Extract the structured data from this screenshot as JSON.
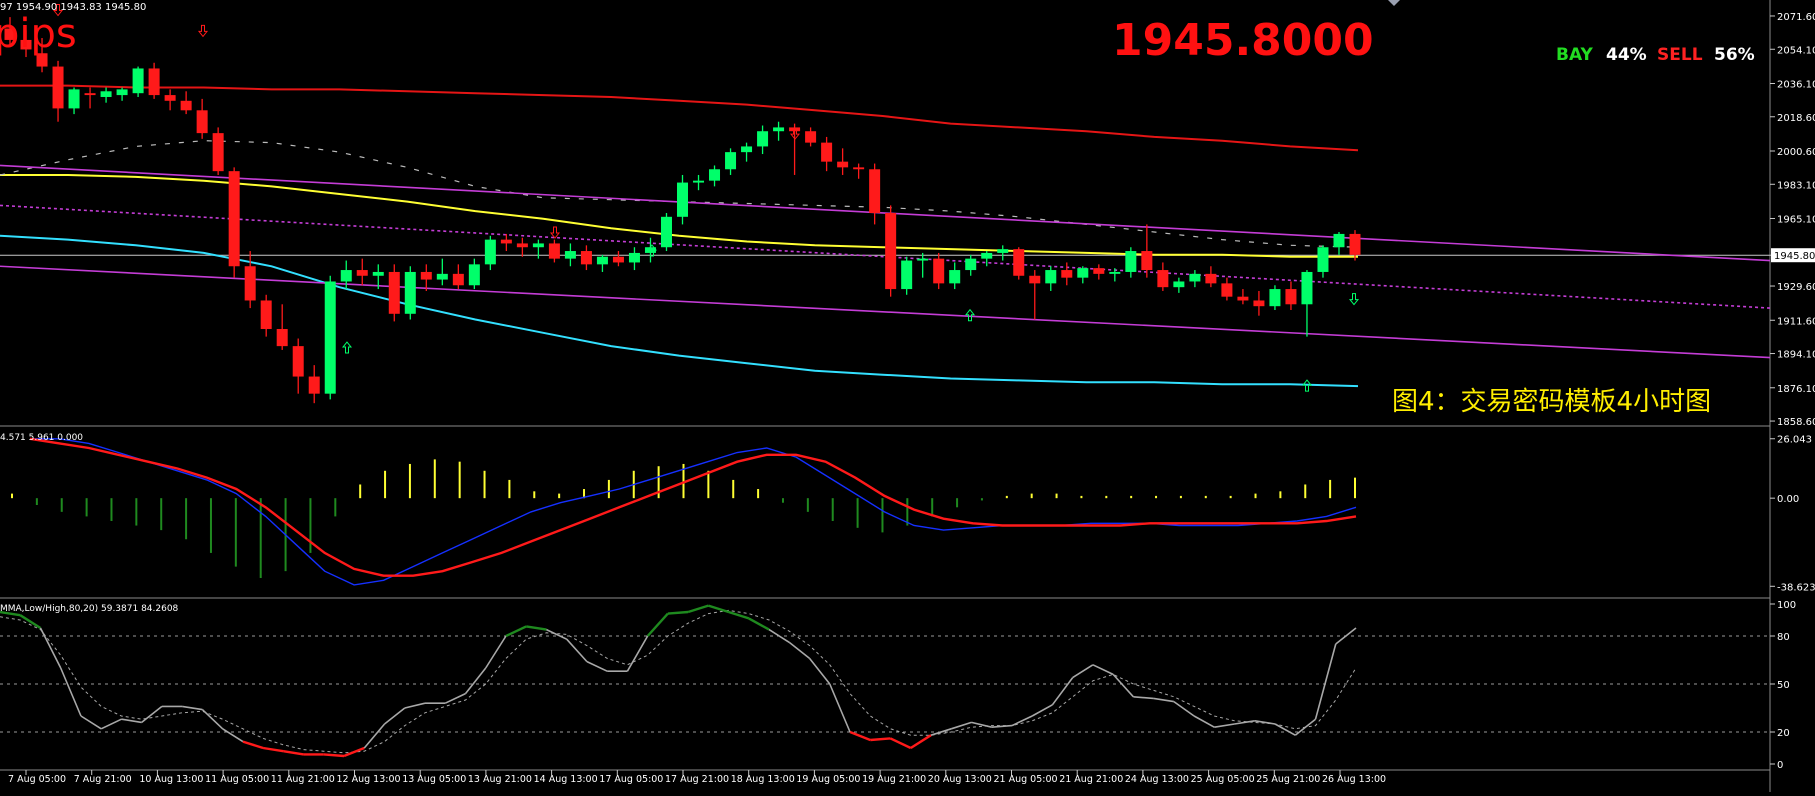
{
  "colors": {
    "background": "#000000",
    "bull": "#00ff6a",
    "bear": "#ff1a1a",
    "grid": "#c8c8c8",
    "price_line": "#c8c8c8",
    "upper_band": "#e51515",
    "middle_band": "#ffff33",
    "lower_band": "#33e0ff",
    "channel": "#c43dd6",
    "macd_hist_pos": "#ffff33",
    "macd_hist_neg": "#1f8a1f",
    "macd_main": "#1530ff",
    "macd_signal": "#ff1a1a",
    "stoch_main": "#a8a8a8",
    "stoch_signal": "#a8a8a8",
    "stoch_over": "#1f8a1f",
    "stoch_under": "#ff1a1a",
    "bay": "#22dd22",
    "sell": "#ff2222",
    "pct": "#ffffff",
    "caption": "#ffee00",
    "big_price": "#ff1111"
  },
  "header": {
    "ohlc_text": "97 1954.90 1943.83 1945.80",
    "pips_text": "pips",
    "big_price": "1945.8000",
    "bay_label": "BAY",
    "bay_pct": "44%",
    "sell_label": "SELL",
    "sell_pct": "56%",
    "caption": "图4：交易密码模板4小时图"
  },
  "macd_header": "4.571 5.961 0.000",
  "stoch_header": "MMA,Low/High,80,20) 59.3871 84.2608",
  "price_axis": {
    "ticks": [
      "2071.60",
      "2054.10",
      "2036.10",
      "2018.60",
      "2000.60",
      "1983.10",
      "1965.10",
      "1945.80",
      "1929.60",
      "1911.60",
      "1894.10",
      "1876.10",
      "1858.60"
    ],
    "current_label": "1945.80",
    "min": 1856,
    "max": 2080,
    "current": 1945.8
  },
  "macd_axis": {
    "ticks": [
      "26.043",
      "0.00",
      "-38.623"
    ],
    "min": -42,
    "max": 29
  },
  "stoch_axis": {
    "ticks": [
      "100",
      "80",
      "50",
      "20",
      "0"
    ],
    "levels": [
      80,
      50,
      20
    ]
  },
  "time_axis": [
    "7 Aug 05:00",
    "7 Aug 21:00",
    "10 Aug 13:00",
    "11 Aug 05:00",
    "11 Aug 21:00",
    "12 Aug 13:00",
    "13 Aug 05:00",
    "13 Aug 21:00",
    "14 Aug 13:00",
    "17 Aug 05:00",
    "17 Aug 21:00",
    "18 Aug 13:00",
    "19 Aug 05:00",
    "19 Aug 21:00",
    "20 Aug 13:00",
    "21 Aug 05:00",
    "21 Aug 21:00",
    "24 Aug 13:00",
    "25 Aug 05:00",
    "25 Aug 21:00",
    "26 Aug 13:00"
  ],
  "chart_data": {
    "type": "candlestick",
    "title": "",
    "candles": [
      {
        "o": 2065,
        "h": 2071,
        "l": 2056,
        "c": 2059
      },
      {
        "o": 2059,
        "h": 2064,
        "l": 2050,
        "c": 2054
      },
      {
        "o": 2052,
        "h": 2060,
        "l": 2042,
        "c": 2045
      },
      {
        "o": 2045,
        "h": 2048,
        "l": 2016,
        "c": 2023
      },
      {
        "o": 2023,
        "h": 2034,
        "l": 2020,
        "c": 2033
      },
      {
        "o": 2031,
        "h": 2034,
        "l": 2023,
        "c": 2030
      },
      {
        "o": 2029,
        "h": 2034,
        "l": 2026,
        "c": 2032
      },
      {
        "o": 2030,
        "h": 2034,
        "l": 2027,
        "c": 2033
      },
      {
        "o": 2031,
        "h": 2045,
        "l": 2029,
        "c": 2044
      },
      {
        "o": 2044,
        "h": 2047,
        "l": 2028,
        "c": 2030
      },
      {
        "o": 2030,
        "h": 2033,
        "l": 2022,
        "c": 2027
      },
      {
        "o": 2027,
        "h": 2032,
        "l": 2020,
        "c": 2022
      },
      {
        "o": 2022,
        "h": 2028,
        "l": 2007,
        "c": 2010
      },
      {
        "o": 2010,
        "h": 2013,
        "l": 1988,
        "c": 1990
      },
      {
        "o": 1990,
        "h": 1992,
        "l": 1934,
        "c": 1940
      },
      {
        "o": 1940,
        "h": 1948,
        "l": 1918,
        "c": 1922
      },
      {
        "o": 1922,
        "h": 1925,
        "l": 1903,
        "c": 1907
      },
      {
        "o": 1907,
        "h": 1920,
        "l": 1896,
        "c": 1898
      },
      {
        "o": 1898,
        "h": 1902,
        "l": 1873,
        "c": 1882
      },
      {
        "o": 1882,
        "h": 1888,
        "l": 1868,
        "c": 1873
      },
      {
        "o": 1873,
        "h": 1935,
        "l": 1870,
        "c": 1932
      },
      {
        "o": 1932,
        "h": 1943,
        "l": 1928,
        "c": 1938
      },
      {
        "o": 1938,
        "h": 1944,
        "l": 1930,
        "c": 1935
      },
      {
        "o": 1935,
        "h": 1941,
        "l": 1928,
        "c": 1937
      },
      {
        "o": 1937,
        "h": 1941,
        "l": 1911,
        "c": 1915
      },
      {
        "o": 1915,
        "h": 1940,
        "l": 1912,
        "c": 1937
      },
      {
        "o": 1937,
        "h": 1941,
        "l": 1927,
        "c": 1933
      },
      {
        "o": 1933,
        "h": 1944,
        "l": 1930,
        "c": 1936
      },
      {
        "o": 1936,
        "h": 1941,
        "l": 1928,
        "c": 1930
      },
      {
        "o": 1930,
        "h": 1944,
        "l": 1928,
        "c": 1941
      },
      {
        "o": 1941,
        "h": 1956,
        "l": 1938,
        "c": 1954
      },
      {
        "o": 1954,
        "h": 1957,
        "l": 1948,
        "c": 1952
      },
      {
        "o": 1952,
        "h": 1955,
        "l": 1945,
        "c": 1950
      },
      {
        "o": 1950,
        "h": 1954,
        "l": 1944,
        "c": 1952
      },
      {
        "o": 1952,
        "h": 1954,
        "l": 1942,
        "c": 1944
      },
      {
        "o": 1944,
        "h": 1952,
        "l": 1940,
        "c": 1948
      },
      {
        "o": 1948,
        "h": 1951,
        "l": 1938,
        "c": 1941
      },
      {
        "o": 1941,
        "h": 1946,
        "l": 1937,
        "c": 1945
      },
      {
        "o": 1945,
        "h": 1948,
        "l": 1940,
        "c": 1942
      },
      {
        "o": 1942,
        "h": 1950,
        "l": 1938,
        "c": 1947
      },
      {
        "o": 1947,
        "h": 1955,
        "l": 1942,
        "c": 1950
      },
      {
        "o": 1950,
        "h": 1968,
        "l": 1948,
        "c": 1966
      },
      {
        "o": 1966,
        "h": 1988,
        "l": 1962,
        "c": 1984
      },
      {
        "o": 1984,
        "h": 1988,
        "l": 1980,
        "c": 1985
      },
      {
        "o": 1985,
        "h": 1993,
        "l": 1982,
        "c": 1991
      },
      {
        "o": 1991,
        "h": 2002,
        "l": 1988,
        "c": 2000
      },
      {
        "o": 2000,
        "h": 2005,
        "l": 1995,
        "c": 2003
      },
      {
        "o": 2003,
        "h": 2014,
        "l": 1999,
        "c": 2011
      },
      {
        "o": 2011,
        "h": 2016,
        "l": 2006,
        "c": 2013
      },
      {
        "o": 2013,
        "h": 2015,
        "l": 1988,
        "c": 2011
      },
      {
        "o": 2011,
        "h": 2013,
        "l": 2003,
        "c": 2005
      },
      {
        "o": 2005,
        "h": 2008,
        "l": 1990,
        "c": 1995
      },
      {
        "o": 1995,
        "h": 2002,
        "l": 1988,
        "c": 1992
      },
      {
        "o": 1992,
        "h": 1994,
        "l": 1986,
        "c": 1991
      },
      {
        "o": 1991,
        "h": 1994,
        "l": 1962,
        "c": 1968
      },
      {
        "o": 1968,
        "h": 1972,
        "l": 1924,
        "c": 1928
      },
      {
        "o": 1928,
        "h": 1945,
        "l": 1925,
        "c": 1943
      },
      {
        "o": 1943,
        "h": 1947,
        "l": 1934,
        "c": 1944
      },
      {
        "o": 1944,
        "h": 1947,
        "l": 1928,
        "c": 1931
      },
      {
        "o": 1931,
        "h": 1942,
        "l": 1928,
        "c": 1938
      },
      {
        "o": 1938,
        "h": 1946,
        "l": 1935,
        "c": 1944
      },
      {
        "o": 1944,
        "h": 1948,
        "l": 1940,
        "c": 1947
      },
      {
        "o": 1947,
        "h": 1951,
        "l": 1943,
        "c": 1949
      },
      {
        "o": 1949,
        "h": 1950,
        "l": 1933,
        "c": 1935
      },
      {
        "o": 1935,
        "h": 1938,
        "l": 1912,
        "c": 1931
      },
      {
        "o": 1931,
        "h": 1940,
        "l": 1927,
        "c": 1938
      },
      {
        "o": 1938,
        "h": 1942,
        "l": 1930,
        "c": 1934
      },
      {
        "o": 1934,
        "h": 1940,
        "l": 1931,
        "c": 1939
      },
      {
        "o": 1939,
        "h": 1941,
        "l": 1933,
        "c": 1936
      },
      {
        "o": 1936,
        "h": 1939,
        "l": 1932,
        "c": 1937
      },
      {
        "o": 1937,
        "h": 1950,
        "l": 1934,
        "c": 1948
      },
      {
        "o": 1948,
        "h": 1962,
        "l": 1934,
        "c": 1938
      },
      {
        "o": 1938,
        "h": 1942,
        "l": 1927,
        "c": 1929
      },
      {
        "o": 1929,
        "h": 1934,
        "l": 1926,
        "c": 1932
      },
      {
        "o": 1932,
        "h": 1938,
        "l": 1929,
        "c": 1936
      },
      {
        "o": 1936,
        "h": 1940,
        "l": 1929,
        "c": 1931
      },
      {
        "o": 1931,
        "h": 1934,
        "l": 1922,
        "c": 1924
      },
      {
        "o": 1924,
        "h": 1928,
        "l": 1920,
        "c": 1922
      },
      {
        "o": 1922,
        "h": 1927,
        "l": 1914,
        "c": 1919
      },
      {
        "o": 1919,
        "h": 1930,
        "l": 1917,
        "c": 1928
      },
      {
        "o": 1928,
        "h": 1932,
        "l": 1917,
        "c": 1920
      },
      {
        "o": 1920,
        "h": 1938,
        "l": 1903,
        "c": 1937
      },
      {
        "o": 1937,
        "h": 1951,
        "l": 1934,
        "c": 1950
      },
      {
        "o": 1950,
        "h": 1958,
        "l": 1946,
        "c": 1957
      },
      {
        "o": 1957,
        "h": 1959,
        "l": 1943,
        "c": 1946
      }
    ],
    "upper_band": [
      2035,
      2035,
      2034,
      2034,
      2033,
      2033,
      2032,
      2031,
      2030,
      2029,
      2027,
      2025,
      2022,
      2019,
      2015,
      2013,
      2011,
      2008,
      2006,
      2003,
      2001
    ],
    "middle_band": [
      1988,
      1988,
      1987,
      1985,
      1982,
      1978,
      1974,
      1969,
      1965,
      1960,
      1956,
      1953,
      1951,
      1950,
      1949,
      1948,
      1947,
      1946,
      1946,
      1945,
      1945
    ],
    "lower_band": [
      1956,
      1954,
      1951,
      1947,
      1940,
      1929,
      1920,
      1912,
      1905,
      1898,
      1893,
      1889,
      1885,
      1883,
      1881,
      1880,
      1879,
      1879,
      1878,
      1878,
      1877
    ],
    "macd_hist": [
      2,
      -3,
      -6,
      -8,
      -10,
      -12,
      -14,
      -18,
      -24,
      -30,
      -35,
      -32,
      -24,
      -8,
      6,
      12,
      15,
      17,
      16,
      12,
      8,
      3,
      2,
      4,
      8,
      12,
      14,
      15,
      12,
      8,
      4,
      -2,
      -6,
      -10,
      -13,
      -15,
      -12,
      -8,
      -4,
      -1,
      1,
      2,
      2,
      1,
      1,
      1,
      1,
      1,
      1,
      1,
      2,
      3,
      6,
      8,
      9
    ],
    "macd_main": [
      26,
      26,
      24,
      20,
      16,
      12,
      8,
      2,
      -8,
      -20,
      -32,
      -38,
      -36,
      -30,
      -24,
      -18,
      -12,
      -6,
      -2,
      1,
      4,
      8,
      12,
      16,
      20,
      22,
      18,
      10,
      2,
      -6,
      -12,
      -14,
      -13,
      -12,
      -12,
      -12,
      -11,
      -11,
      -11,
      -12,
      -12,
      -12,
      -11,
      -10,
      -8,
      -4
    ],
    "macd_signal": [
      26,
      24,
      22,
      19,
      16,
      13,
      9,
      4,
      -4,
      -14,
      -24,
      -31,
      -34,
      -34,
      -32,
      -28,
      -24,
      -19,
      -14,
      -9,
      -4,
      1,
      6,
      11,
      16,
      19,
      19,
      16,
      9,
      1,
      -5,
      -9,
      -11,
      -12,
      -12,
      -12,
      -12,
      -12,
      -11,
      -11,
      -11,
      -11,
      -11,
      -11,
      -10,
      -8
    ],
    "stoch_main": [
      95,
      93,
      85,
      60,
      30,
      22,
      28,
      26,
      36,
      36,
      34,
      22,
      14,
      10,
      8,
      6,
      6,
      5,
      10,
      25,
      35,
      38,
      38,
      44,
      60,
      80,
      86,
      84,
      78,
      64,
      58,
      58,
      80,
      94,
      95,
      99,
      95,
      91,
      84,
      76,
      66,
      50,
      20,
      15,
      16,
      10,
      18,
      22,
      26,
      23,
      24,
      30,
      37,
      54,
      62,
      56,
      42,
      41,
      39,
      30,
      23,
      25,
      27,
      25,
      18,
      28,
      75,
      85
    ],
    "stoch_signal": [
      92,
      90,
      84,
      68,
      48,
      36,
      30,
      28,
      30,
      32,
      33,
      28,
      22,
      16,
      12,
      9,
      8,
      7,
      8,
      14,
      24,
      32,
      36,
      40,
      50,
      66,
      78,
      82,
      81,
      74,
      66,
      62,
      68,
      80,
      88,
      94,
      96,
      94,
      90,
      83,
      74,
      62,
      44,
      30,
      22,
      18,
      18,
      20,
      23,
      24,
      24,
      27,
      32,
      42,
      52,
      56,
      50,
      46,
      42,
      36,
      30,
      27,
      26,
      25,
      22,
      24,
      40,
      60
    ]
  }
}
